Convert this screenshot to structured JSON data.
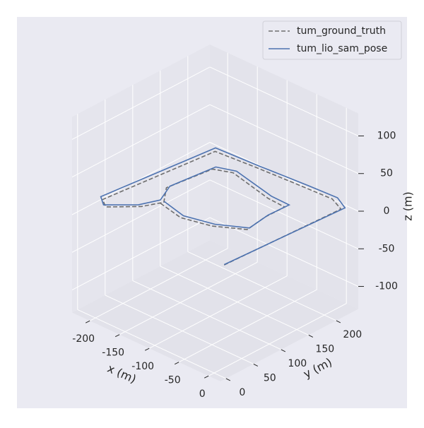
{
  "chart_data": {
    "type": "line3d",
    "xlabel": "x (m)",
    "ylabel": "y (m)",
    "zlabel": "z (m)",
    "xlim": [
      -230,
      20
    ],
    "ylim": [
      -10,
      240
    ],
    "zlim": [
      -130,
      130
    ],
    "xticks": [
      -200,
      -150,
      -100,
      -50,
      0
    ],
    "yticks": [
      0,
      50,
      100,
      150,
      200
    ],
    "zticks": [
      -100,
      -50,
      0,
      50,
      100
    ],
    "grid": true,
    "legend": "upper right",
    "series": [
      {
        "name": "tum_ground_truth",
        "color": "#6e6e6e",
        "dash": true,
        "x": [
          -11,
          1,
          -20,
          -64,
          -138,
          -197,
          -226,
          -213,
          -182,
          -173,
          -189,
          -172,
          -151,
          -80,
          -53,
          -56,
          -52,
          -88,
          -128,
          -170
        ],
        "y": [
          30,
          229,
          236,
          231,
          222,
          214,
          41,
          33,
          64,
          95,
          117,
          182,
          197,
          184,
          185,
          153,
          116,
          91,
          77,
          86
        ],
        "z": [
          -2,
          0,
          3,
          5,
          8,
          10,
          2,
          0,
          0,
          -3,
          2,
          8,
          5,
          2,
          0,
          -2,
          -3,
          -2,
          0,
          0
        ]
      },
      {
        "name": "tum_lio_sam_pose",
        "color": "#4c72b0",
        "dash": false,
        "x": [
          -9,
          5,
          -15,
          -60,
          -135,
          -200,
          -230,
          -216,
          -185,
          -176,
          -186,
          -170,
          -148,
          -78,
          -50,
          -54,
          -50,
          -86,
          -126,
          -168
        ],
        "y": [
          28,
          232,
          240,
          236,
          226,
          218,
          42,
          32,
          62,
          92,
          120,
          186,
          200,
          188,
          190,
          156,
          118,
          94,
          80,
          90
        ],
        "z": [
          0,
          2,
          5,
          6,
          9,
          12,
          4,
          2,
          2,
          0,
          4,
          10,
          7,
          4,
          2,
          0,
          -1,
          0,
          2,
          2
        ]
      }
    ]
  }
}
